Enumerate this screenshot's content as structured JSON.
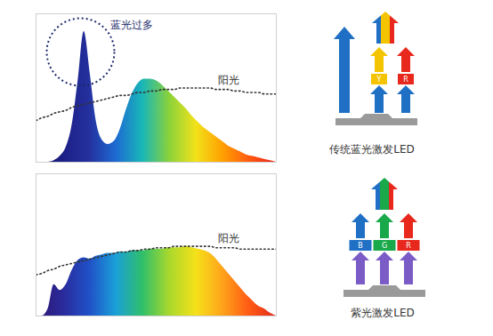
{
  "chart_data": [
    {
      "type": "area",
      "annotation": "蓝光过多",
      "tick_labels": false,
      "xlim": [
        0,
        40
      ],
      "ylim": [
        0,
        100
      ],
      "x": [
        0,
        1,
        2,
        3,
        4,
        5,
        6,
        7,
        8,
        9,
        10,
        11,
        12,
        13,
        14,
        15,
        16,
        17,
        18,
        19,
        20,
        21,
        22,
        23,
        24,
        25,
        26,
        27,
        28,
        29,
        30,
        31,
        32,
        33,
        34,
        35,
        36,
        37,
        38,
        39,
        40
      ],
      "series": [
        {
          "type": "area",
          "colors": [
            "#1a1464",
            "#1d1f86",
            "#24309e",
            "#1d6ad2",
            "#19b7b8",
            "#8ad23a",
            "#f2e21a",
            "#ffa000",
            "#ff5a10",
            "#e8241c"
          ],
          "values": [
            0,
            0,
            0,
            1,
            4,
            10,
            25,
            55,
            88,
            60,
            28,
            15,
            12,
            14,
            22,
            35,
            46,
            53,
            56,
            56,
            55,
            52,
            48,
            44,
            40,
            36,
            31,
            27,
            23,
            20,
            17,
            14,
            11,
            9,
            7,
            5,
            4,
            3,
            2,
            1,
            0
          ]
        },
        {
          "name": "阳光",
          "type": "line",
          "line_style": "dotted",
          "color": "#333333",
          "values": [
            28,
            30,
            31,
            33,
            34,
            35,
            37,
            38,
            39,
            40,
            41,
            42,
            43,
            44,
            45,
            45,
            46,
            47,
            47,
            48,
            48,
            49,
            49,
            49,
            50,
            50,
            50,
            50,
            50,
            50,
            49,
            49,
            49,
            48,
            48,
            47,
            47,
            47,
            46,
            46,
            46
          ]
        }
      ]
    },
    {
      "type": "area",
      "tick_labels": false,
      "xlim": [
        0,
        40
      ],
      "ylim": [
        0,
        100
      ],
      "x": [
        0,
        1,
        2,
        3,
        4,
        5,
        6,
        7,
        8,
        9,
        10,
        11,
        12,
        13,
        14,
        15,
        16,
        17,
        18,
        19,
        20,
        21,
        22,
        23,
        24,
        25,
        26,
        27,
        28,
        29,
        30,
        31,
        32,
        33,
        34,
        35,
        36,
        37,
        38,
        39,
        40
      ],
      "series": [
        {
          "type": "area",
          "colors": [
            "#2d1470",
            "#2a2a9a",
            "#2050c8",
            "#1aa0d8",
            "#2fbf6a",
            "#a9d82c",
            "#f5e11a",
            "#ffa31a",
            "#ff5a14",
            "#e02a1c"
          ],
          "values": [
            0,
            0,
            5,
            22,
            18,
            22,
            32,
            39,
            41,
            40,
            42,
            43,
            44,
            44,
            45,
            45,
            46,
            46,
            46,
            47,
            47,
            47,
            48,
            48,
            48,
            49,
            48,
            47,
            46,
            44,
            40,
            35,
            30,
            25,
            20,
            15,
            11,
            7,
            5,
            2,
            0
          ]
        },
        {
          "name": "阳光",
          "type": "line",
          "line_style": "dotted",
          "color": "#333333",
          "values": [
            29,
            30,
            32,
            33,
            35,
            36,
            37,
            38,
            39,
            40,
            41,
            42,
            43,
            44,
            45,
            45,
            46,
            46,
            47,
            47,
            48,
            48,
            48,
            49,
            49,
            49,
            49,
            49,
            49,
            49,
            48,
            48,
            48,
            48,
            47,
            47,
            47,
            47,
            47,
            47,
            47
          ]
        }
      ]
    }
  ],
  "diagrams": [
    {
      "label": "传统蓝光激发LED",
      "pump_color": "#1f6fc5",
      "phosphors": [
        {
          "label": "Y",
          "color": "#f5c400"
        },
        {
          "label": "R",
          "color": "#e8281c"
        }
      ],
      "output": [
        "#1f6fc5",
        "#f5c400",
        "#e8281c"
      ]
    },
    {
      "label": "紫光激发LED",
      "pump_color": "#7b5cc7",
      "phosphors": [
        {
          "label": "B",
          "color": "#1f6fc5"
        },
        {
          "label": "G",
          "color": "#19a84a"
        },
        {
          "label": "R",
          "color": "#e8281c"
        }
      ],
      "output": [
        "#1f6fc5",
        "#19a84a",
        "#e8281c"
      ]
    }
  ]
}
